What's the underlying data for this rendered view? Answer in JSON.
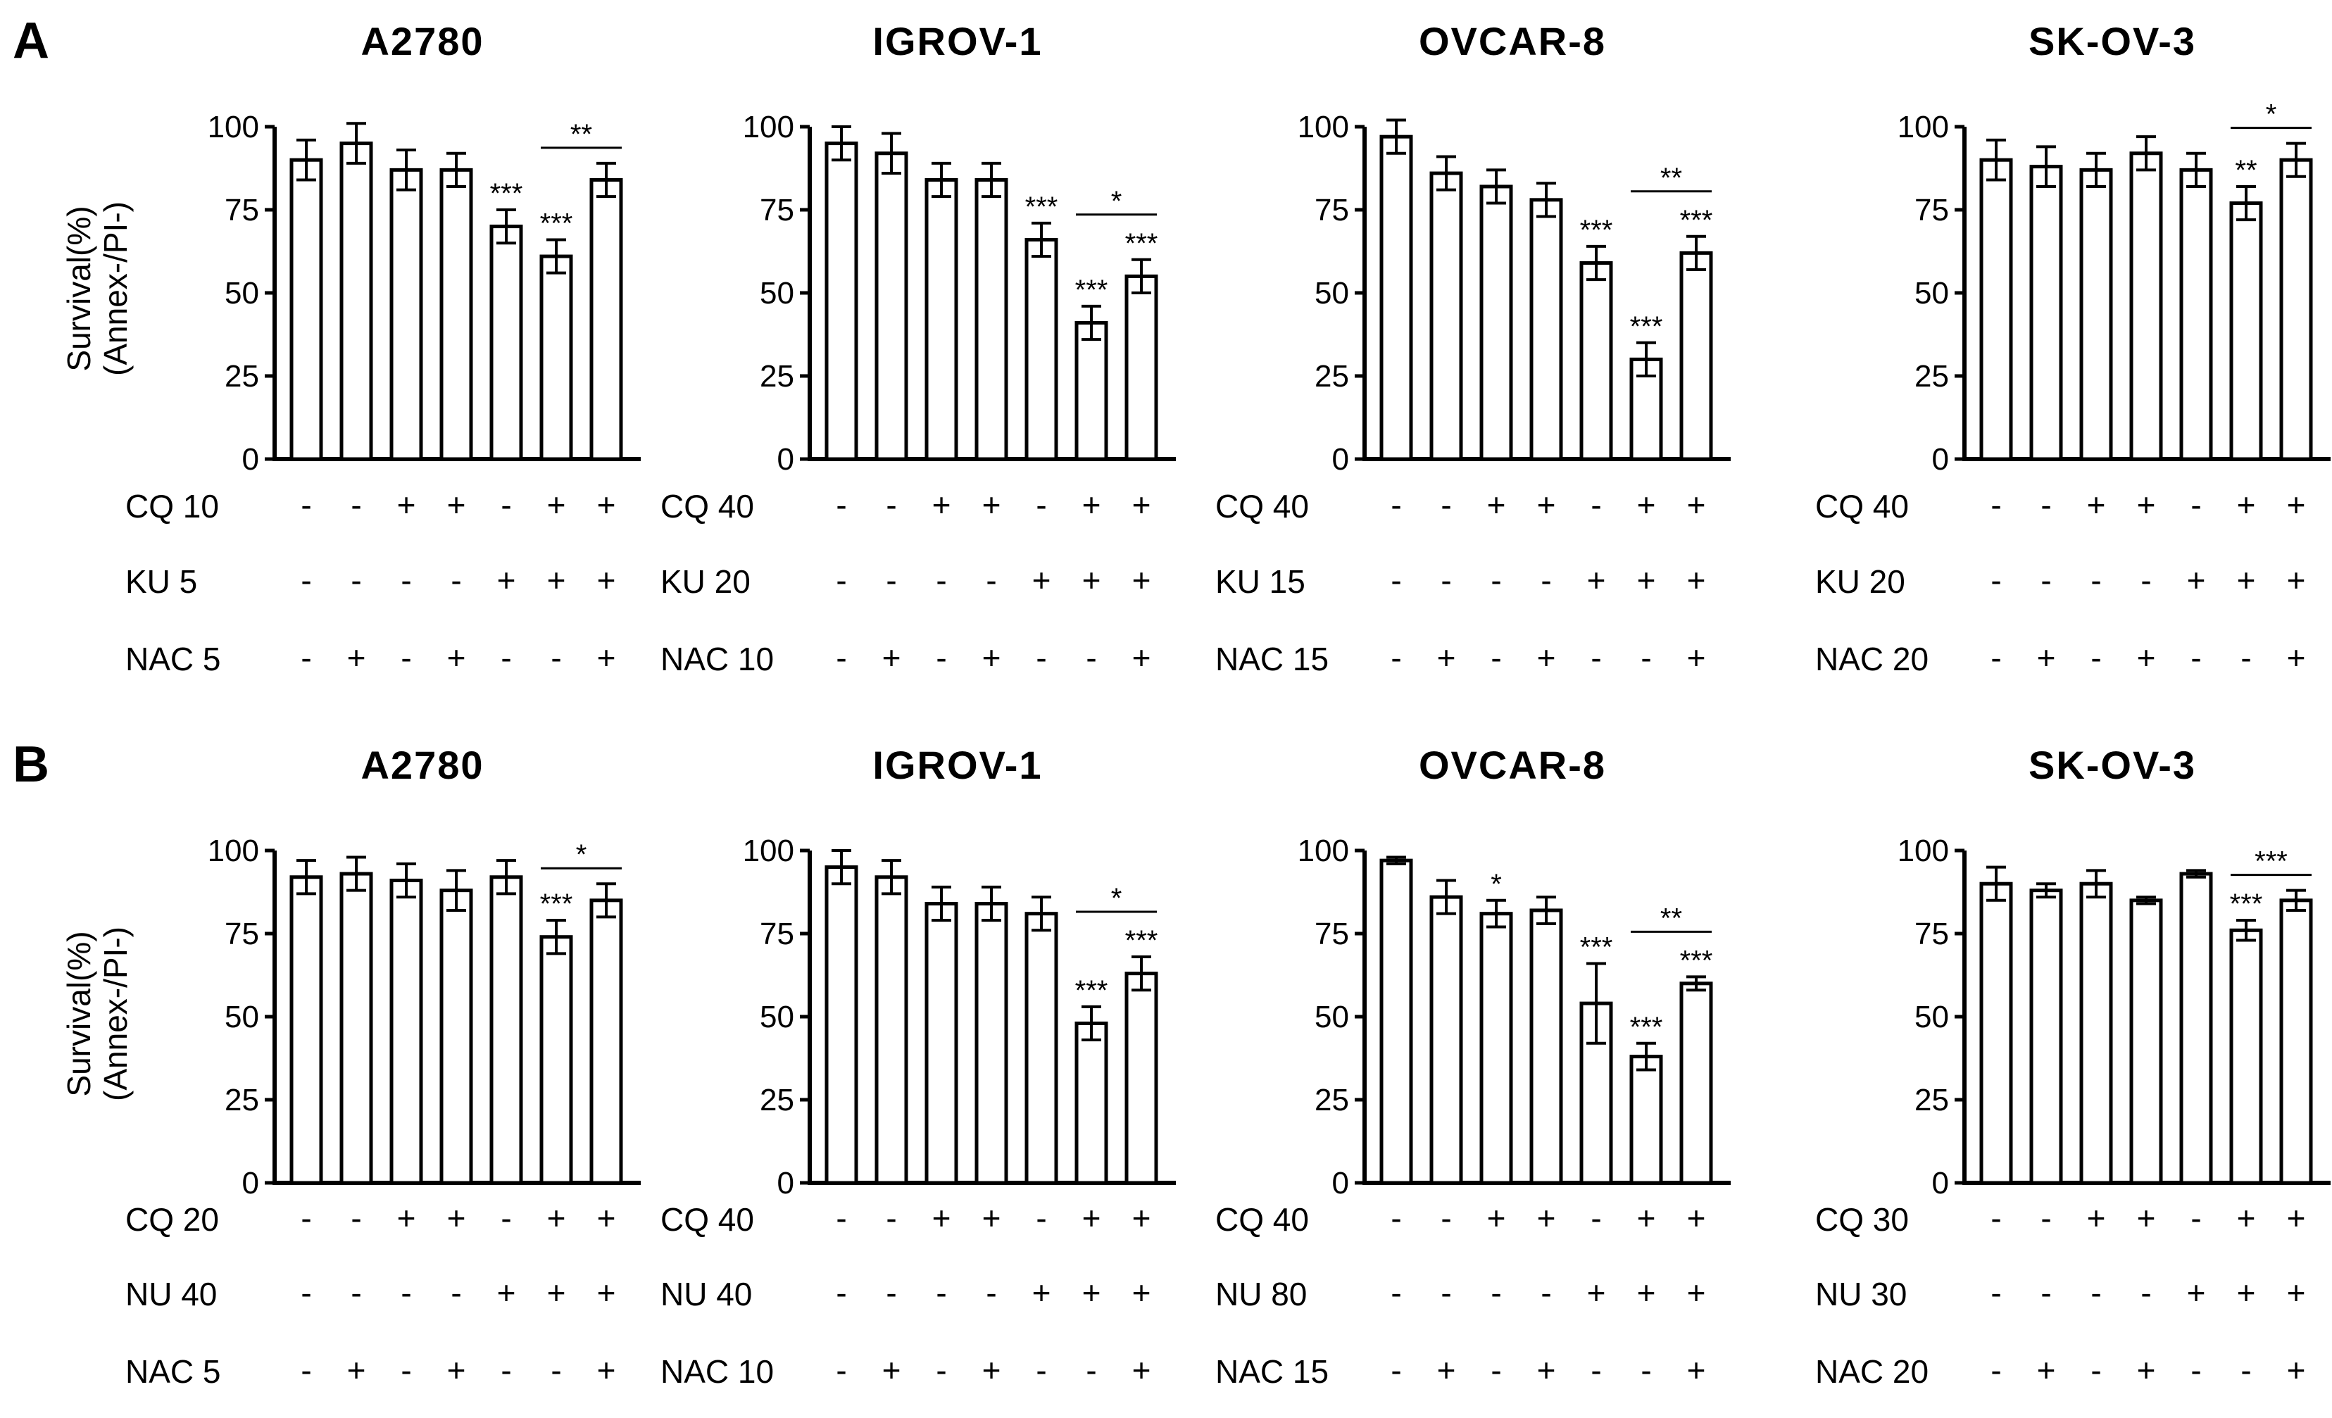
{
  "figure": {
    "panels": [
      {
        "letter": "A",
        "ylabel": [
          "Survival(%)",
          "(Annex-/PI-)"
        ]
      },
      {
        "letter": "B",
        "ylabel": [
          "Survival(%)",
          "(Annex-/PI-)"
        ]
      }
    ]
  },
  "chart_data": [
    {
      "type": "bar",
      "panel": "A",
      "title": "A2780",
      "ylim": [
        0,
        100
      ],
      "yticks": [
        "100",
        "75",
        "50",
        "25",
        "0"
      ],
      "values": [
        90,
        95,
        87,
        87,
        70,
        61,
        84
      ],
      "errors": [
        6,
        6,
        6,
        5,
        5,
        5,
        5
      ],
      "stars": [
        "",
        "",
        "",
        "",
        "***",
        "***",
        ""
      ],
      "bracket": {
        "from": 5,
        "to": 6,
        "label": "**"
      },
      "treatments": [
        {
          "label": "CQ 10",
          "signs": [
            "-",
            "-",
            "+",
            "+",
            "-",
            "+",
            "+"
          ]
        },
        {
          "label": "KU 5",
          "signs": [
            "-",
            "-",
            "-",
            "-",
            "+",
            "+",
            "+"
          ]
        },
        {
          "label": "NAC 5",
          "signs": [
            "-",
            "+",
            "-",
            "+",
            "-",
            "-",
            "+"
          ]
        }
      ]
    },
    {
      "type": "bar",
      "panel": "A",
      "title": "IGROV-1",
      "ylim": [
        0,
        100
      ],
      "yticks": [
        "100",
        "75",
        "50",
        "25",
        "0"
      ],
      "values": [
        95,
        92,
        84,
        84,
        66,
        41,
        55
      ],
      "errors": [
        5,
        6,
        5,
        5,
        5,
        5,
        5
      ],
      "stars": [
        "",
        "",
        "",
        "",
        "***",
        "***",
        "***"
      ],
      "bracket": {
        "from": 5,
        "to": 6,
        "label": "*"
      },
      "treatments": [
        {
          "label": "CQ 40",
          "signs": [
            "-",
            "-",
            "+",
            "+",
            "-",
            "+",
            "+"
          ]
        },
        {
          "label": "KU 20",
          "signs": [
            "-",
            "-",
            "-",
            "-",
            "+",
            "+",
            "+"
          ]
        },
        {
          "label": "NAC 10",
          "signs": [
            "-",
            "+",
            "-",
            "+",
            "-",
            "-",
            "+"
          ]
        }
      ]
    },
    {
      "type": "bar",
      "panel": "A",
      "title": "OVCAR-8",
      "ylim": [
        0,
        100
      ],
      "yticks": [
        "100",
        "75",
        "50",
        "25",
        "0"
      ],
      "values": [
        97,
        86,
        82,
        78,
        59,
        30,
        62
      ],
      "errors": [
        5,
        5,
        5,
        5,
        5,
        5,
        5
      ],
      "stars": [
        "",
        "",
        "",
        "",
        "***",
        "***",
        "***"
      ],
      "bracket": {
        "from": 5,
        "to": 6,
        "label": "**"
      },
      "treatments": [
        {
          "label": "CQ 40",
          "signs": [
            "-",
            "-",
            "+",
            "+",
            "-",
            "+",
            "+"
          ]
        },
        {
          "label": "KU 15",
          "signs": [
            "-",
            "-",
            "-",
            "-",
            "+",
            "+",
            "+"
          ]
        },
        {
          "label": "NAC 15",
          "signs": [
            "-",
            "+",
            "-",
            "+",
            "-",
            "-",
            "+"
          ]
        }
      ]
    },
    {
      "type": "bar",
      "panel": "A",
      "title": "SK-OV-3",
      "ylim": [
        0,
        100
      ],
      "yticks": [
        "100",
        "75",
        "50",
        "25",
        "0"
      ],
      "values": [
        90,
        88,
        87,
        92,
        87,
        77,
        90
      ],
      "errors": [
        6,
        6,
        5,
        5,
        5,
        5,
        5
      ],
      "stars": [
        "",
        "",
        "",
        "",
        "",
        "**",
        ""
      ],
      "bracket": {
        "from": 5,
        "to": 6,
        "label": "*"
      },
      "treatments": [
        {
          "label": "CQ 40",
          "signs": [
            "-",
            "-",
            "+",
            "+",
            "-",
            "+",
            "+"
          ]
        },
        {
          "label": "KU 20",
          "signs": [
            "-",
            "-",
            "-",
            "-",
            "+",
            "+",
            "+"
          ]
        },
        {
          "label": "NAC 20",
          "signs": [
            "-",
            "+",
            "-",
            "+",
            "-",
            "-",
            "+"
          ]
        }
      ]
    },
    {
      "type": "bar",
      "panel": "B",
      "title": "A2780",
      "ylim": [
        0,
        100
      ],
      "yticks": [
        "100",
        "75",
        "50",
        "25",
        "0"
      ],
      "values": [
        92,
        93,
        91,
        88,
        92,
        74,
        85
      ],
      "errors": [
        5,
        5,
        5,
        6,
        5,
        5,
        5
      ],
      "stars": [
        "",
        "",
        "",
        "",
        "",
        "***",
        ""
      ],
      "bracket": {
        "from": 5,
        "to": 6,
        "label": "*"
      },
      "treatments": [
        {
          "label": "CQ 20",
          "signs": [
            "-",
            "-",
            "+",
            "+",
            "-",
            "+",
            "+"
          ]
        },
        {
          "label": "NU 40",
          "signs": [
            "-",
            "-",
            "-",
            "-",
            "+",
            "+",
            "+"
          ]
        },
        {
          "label": "NAC 5",
          "signs": [
            "-",
            "+",
            "-",
            "+",
            "-",
            "-",
            "+"
          ]
        }
      ]
    },
    {
      "type": "bar",
      "panel": "B",
      "title": "IGROV-1",
      "ylim": [
        0,
        100
      ],
      "yticks": [
        "100",
        "75",
        "50",
        "25",
        "0"
      ],
      "values": [
        95,
        92,
        84,
        84,
        81,
        48,
        63
      ],
      "errors": [
        5,
        5,
        5,
        5,
        5,
        5,
        5
      ],
      "stars": [
        "",
        "",
        "",
        "",
        "",
        "***",
        "***"
      ],
      "bracket": {
        "from": 5,
        "to": 6,
        "label": "*"
      },
      "treatments": [
        {
          "label": "CQ 40",
          "signs": [
            "-",
            "-",
            "+",
            "+",
            "-",
            "+",
            "+"
          ]
        },
        {
          "label": "NU 40",
          "signs": [
            "-",
            "-",
            "-",
            "-",
            "+",
            "+",
            "+"
          ]
        },
        {
          "label": "NAC 10",
          "signs": [
            "-",
            "+",
            "-",
            "+",
            "-",
            "-",
            "+"
          ]
        }
      ]
    },
    {
      "type": "bar",
      "panel": "B",
      "title": "OVCAR-8",
      "ylim": [
        0,
        100
      ],
      "yticks": [
        "100",
        "75",
        "50",
        "25",
        "0"
      ],
      "values": [
        97,
        86,
        81,
        82,
        54,
        38,
        60
      ],
      "errors": [
        1,
        5,
        4,
        4,
        12,
        4,
        2
      ],
      "stars": [
        "",
        "",
        "*",
        "",
        "***",
        "***",
        "***"
      ],
      "bracket": {
        "from": 5,
        "to": 6,
        "label": "**"
      },
      "treatments": [
        {
          "label": "CQ 40",
          "signs": [
            "-",
            "-",
            "+",
            "+",
            "-",
            "+",
            "+"
          ]
        },
        {
          "label": "NU 80",
          "signs": [
            "-",
            "-",
            "-",
            "-",
            "+",
            "+",
            "+"
          ]
        },
        {
          "label": "NAC 15",
          "signs": [
            "-",
            "+",
            "-",
            "+",
            "-",
            "-",
            "+"
          ]
        }
      ]
    },
    {
      "type": "bar",
      "panel": "B",
      "title": "SK-OV-3",
      "ylim": [
        0,
        100
      ],
      "yticks": [
        "100",
        "75",
        "50",
        "25",
        "0"
      ],
      "values": [
        90,
        88,
        90,
        85,
        93,
        76,
        85
      ],
      "errors": [
        5,
        2,
        4,
        1,
        1,
        3,
        3
      ],
      "stars": [
        "",
        "",
        "",
        "",
        "",
        "***",
        ""
      ],
      "bracket": {
        "from": 5,
        "to": 6,
        "label": "***"
      },
      "treatments": [
        {
          "label": "CQ 30",
          "signs": [
            "-",
            "-",
            "+",
            "+",
            "-",
            "+",
            "+"
          ]
        },
        {
          "label": "NU 30",
          "signs": [
            "-",
            "-",
            "-",
            "-",
            "+",
            "+",
            "+"
          ]
        },
        {
          "label": "NAC 20",
          "signs": [
            "-",
            "+",
            "-",
            "+",
            "-",
            "-",
            "+"
          ]
        }
      ]
    }
  ]
}
